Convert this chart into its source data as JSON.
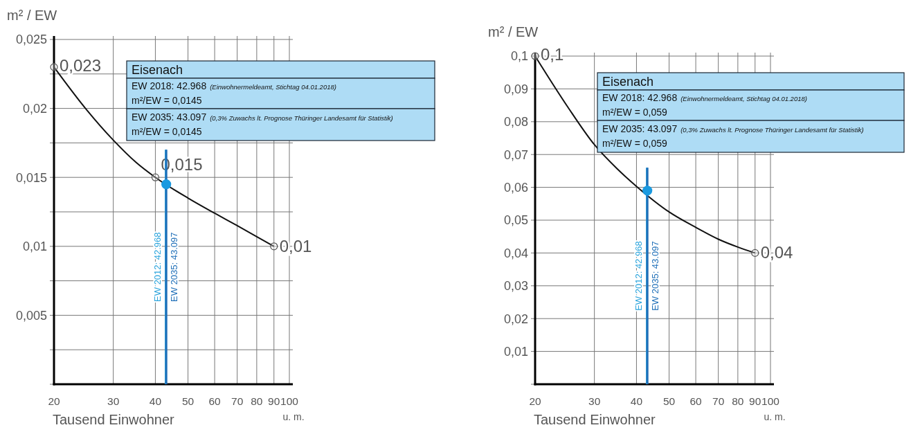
{
  "chart_data": [
    {
      "type": "line",
      "ylabel": "m² / EW",
      "xlabel": "Tausend Einwohner",
      "log": "x",
      "xlim": [
        20,
        100
      ],
      "xticks": [
        20,
        30,
        40,
        50,
        60,
        70,
        80,
        90,
        100
      ],
      "ylim": [
        0,
        0.025
      ],
      "yticks": [
        {
          "value": 0,
          "label": null
        },
        {
          "value": 0.0025,
          "label": null
        },
        {
          "value": 0.005,
          "label": "0,005"
        },
        {
          "value": 0.0075,
          "label": null
        },
        {
          "value": 0.01,
          "label": "0,01"
        },
        {
          "value": 0.0125,
          "label": null
        },
        {
          "value": 0.015,
          "label": "0,015"
        },
        {
          "value": 0.0175,
          "label": null
        },
        {
          "value": 0.02,
          "label": "0,02"
        },
        {
          "value": 0.0225,
          "label": null
        },
        {
          "value": 0.025,
          "label": "0,025"
        }
      ],
      "grid": true,
      "legend": false,
      "annotations": [
        "Eisenach",
        "EW 2018: 42.968",
        "(Einwohnermeldeamt, Stichtag 04.01.2018)",
        "m²/EW = 0,0145",
        "EW 2035: 43.097",
        "(0,3% Zuwachs lt. Prognose Thüringer Landesamt für Statistik)",
        "m²/EW = 0,0145",
        "u. m."
      ],
      "series": [
        {
          "type": "line",
          "color": "#111111",
          "x": [
            20,
            25,
            30,
            35,
            40,
            50,
            60,
            70,
            80,
            90
          ],
          "values": [
            0.023,
            0.0199,
            0.0177,
            0.0161,
            0.015,
            0.0135,
            0.0124,
            0.0115,
            0.0107,
            0.01
          ]
        },
        {
          "type": "scatter",
          "color": "#555555",
          "marker": "circle",
          "x": [
            20,
            40,
            90
          ],
          "values": [
            0.023,
            0.015,
            0.01
          ],
          "value_labels": [
            "0,023",
            "0,015",
            "0,01"
          ]
        },
        {
          "type": "line",
          "name": "EW 2012: 42.968",
          "color": "#29a3dc",
          "x": [
            42.968,
            42.968
          ],
          "values": [
            0,
            0.017
          ]
        },
        {
          "type": "line",
          "name": "EW 2035: 43.097",
          "color": "#1f6fb8",
          "x": [
            43.097,
            43.097
          ],
          "values": [
            0,
            0.017
          ]
        },
        {
          "type": "scatter",
          "color": "#1b9ae0",
          "marker": "circle",
          "x": [
            43.097
          ],
          "values": [
            0.0145
          ]
        }
      ]
    },
    {
      "type": "line",
      "ylabel": "m² / EW",
      "xlabel": "Tausend Einwohner",
      "log": "x",
      "xlim": [
        20,
        100
      ],
      "xticks": [
        20,
        30,
        40,
        50,
        60,
        70,
        80,
        90,
        100
      ],
      "ylim": [
        0,
        0.1
      ],
      "yticks": [
        {
          "value": 0,
          "label": null
        },
        {
          "value": 0.01,
          "label": "0,01"
        },
        {
          "value": 0.02,
          "label": "0,02"
        },
        {
          "value": 0.03,
          "label": "0,03"
        },
        {
          "value": 0.04,
          "label": "0,04"
        },
        {
          "value": 0.05,
          "label": "0,05"
        },
        {
          "value": 0.06,
          "label": "0,06"
        },
        {
          "value": 0.07,
          "label": "0,07"
        },
        {
          "value": 0.08,
          "label": "0,08"
        },
        {
          "value": 0.09,
          "label": "0,09"
        },
        {
          "value": 0.1,
          "label": "0,1"
        }
      ],
      "grid": true,
      "legend": false,
      "annotations": [
        "Eisenach",
        "EW 2018: 42.968",
        "(Einwohnermeldeamt, Stichtag 04.01.2018)",
        "m²/EW = 0,059",
        "EW 2035: 43.097",
        "(0,3% Zuwachs lt. Prognose Thüringer Landesamt für Statistik)",
        "m²/EW = 0,059",
        "u. m."
      ],
      "series": [
        {
          "type": "line",
          "color": "#111111",
          "x": [
            20,
            25,
            30,
            35,
            40,
            50,
            60,
            70,
            80,
            90
          ],
          "values": [
            0.1,
            0.0845,
            0.073,
            0.0657,
            0.0603,
            0.0525,
            0.0478,
            0.0442,
            0.0418,
            0.04
          ]
        },
        {
          "type": "scatter",
          "color": "#555555",
          "marker": "circle",
          "x": [
            20,
            90
          ],
          "values": [
            0.1,
            0.04
          ],
          "value_labels": [
            "0,1",
            "0,04"
          ]
        },
        {
          "type": "line",
          "name": "EW 2012: 42.968",
          "color": "#29a3dc",
          "x": [
            42.968,
            42.968
          ],
          "values": [
            0,
            0.066
          ]
        },
        {
          "type": "line",
          "name": "EW 2035: 43.097",
          "color": "#1f6fb8",
          "x": [
            43.097,
            43.097
          ],
          "values": [
            0,
            0.066
          ]
        },
        {
          "type": "scatter",
          "color": "#1b9ae0",
          "marker": "circle",
          "x": [
            43.097
          ],
          "values": [
            0.059
          ]
        }
      ]
    }
  ]
}
